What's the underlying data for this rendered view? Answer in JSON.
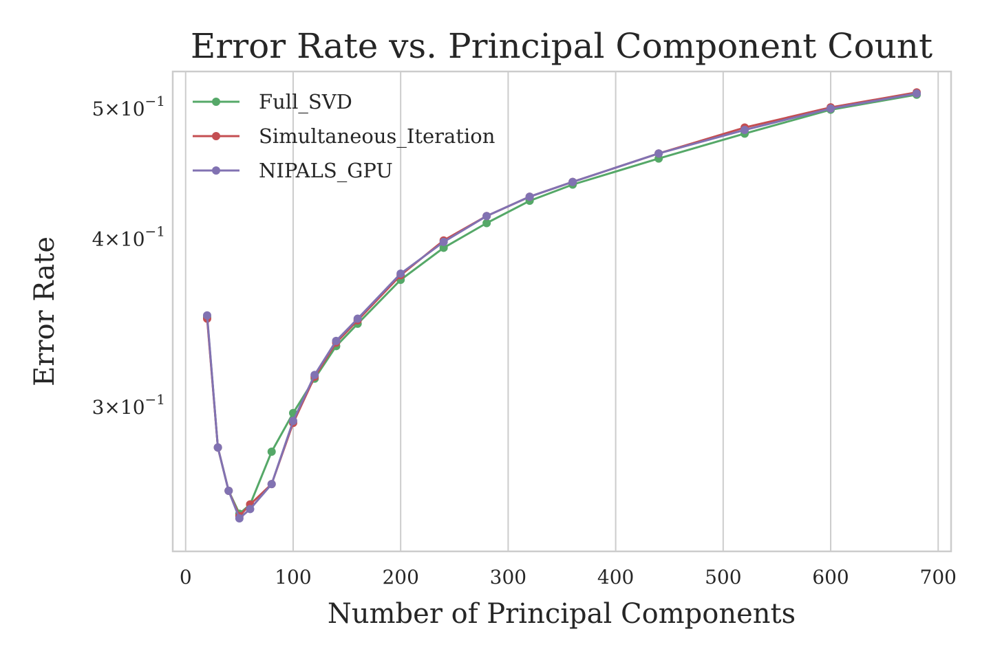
{
  "chart_data": {
    "type": "line",
    "title": "Error Rate vs. Principal Component Count",
    "xlabel": "Number of Principal Components",
    "ylabel": "Error Rate",
    "xlim": [
      -12,
      712
    ],
    "ylim": [
      0.2344,
      0.5327
    ],
    "yscale": "log",
    "grid": {
      "x": true,
      "y": false
    },
    "legend_position": "top-left",
    "x_ticks": [
      {
        "value": 0,
        "label": "0"
      },
      {
        "value": 100,
        "label": "100"
      },
      {
        "value": 200,
        "label": "200"
      },
      {
        "value": 300,
        "label": "300"
      },
      {
        "value": 400,
        "label": "400"
      },
      {
        "value": 500,
        "label": "500"
      },
      {
        "value": 600,
        "label": "600"
      },
      {
        "value": 700,
        "label": "700"
      }
    ],
    "y_ticks": [
      {
        "value": 0.3,
        "mantissa": "3",
        "times": "×",
        "base": "10",
        "exponent": "−1"
      },
      {
        "value": 0.4,
        "mantissa": "4",
        "times": "×",
        "base": "10",
        "exponent": "−1"
      },
      {
        "value": 0.5,
        "mantissa": "5",
        "times": "×",
        "base": "10",
        "exponent": "−1"
      }
    ],
    "x": [
      20,
      30,
      40,
      50,
      60,
      80,
      100,
      120,
      140,
      160,
      200,
      240,
      280,
      320,
      360,
      440,
      520,
      600,
      680
    ],
    "series": [
      {
        "name": "Full_SVD",
        "color": "#55a868",
        "values": [
          0.35,
          0.28,
          0.26,
          0.25,
          0.254,
          0.278,
          0.297,
          0.315,
          0.333,
          0.346,
          0.373,
          0.394,
          0.411,
          0.427,
          0.439,
          0.459,
          0.479,
          0.499,
          0.512
        ]
      },
      {
        "name": "Simultaneous_Iteration",
        "color": "#c44e52",
        "values": [
          0.349,
          0.28,
          0.26,
          0.249,
          0.254,
          0.263,
          0.292,
          0.316,
          0.335,
          0.348,
          0.376,
          0.399,
          0.416,
          0.43,
          0.441,
          0.463,
          0.484,
          0.501,
          0.514
        ]
      },
      {
        "name": "NIPALS_GPU",
        "color": "#8172b2",
        "values": [
          0.351,
          0.28,
          0.26,
          0.248,
          0.252,
          0.263,
          0.293,
          0.317,
          0.336,
          0.349,
          0.377,
          0.398,
          0.416,
          0.43,
          0.441,
          0.463,
          0.482,
          0.5,
          0.513
        ]
      }
    ]
  }
}
